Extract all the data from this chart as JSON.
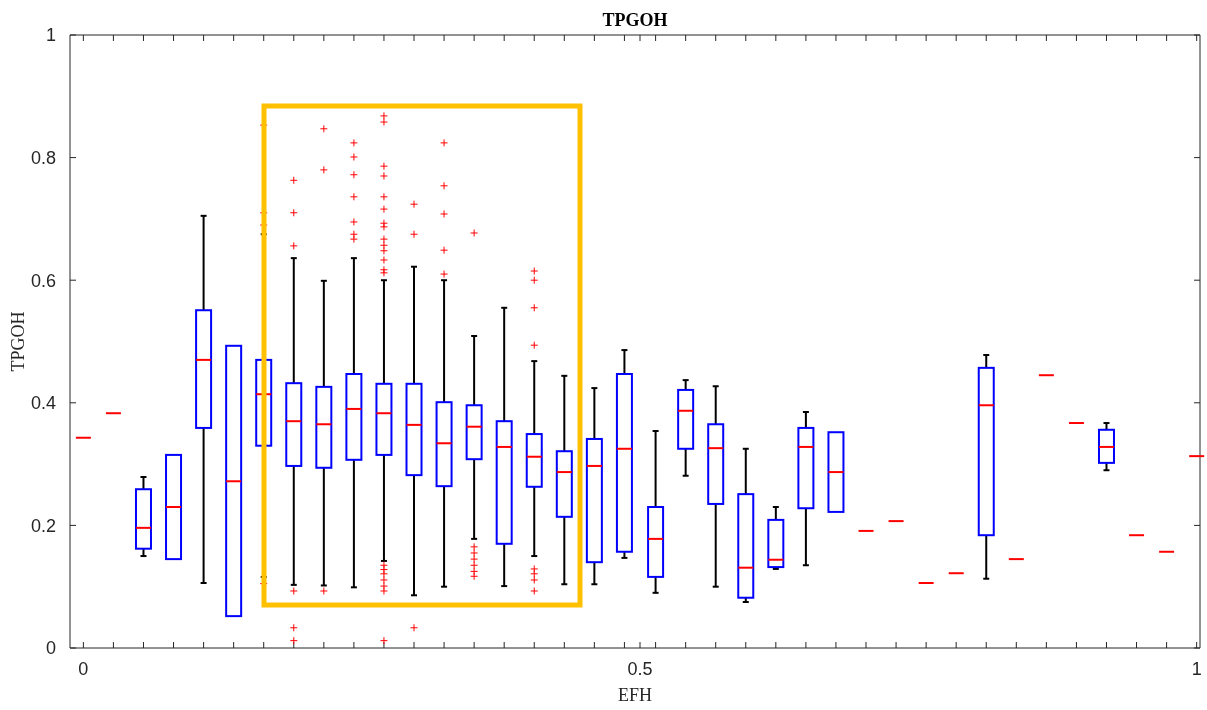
{
  "chart_data": {
    "type": "box",
    "title": "TPGOH",
    "xlabel": "EFH",
    "ylabel": "TPGOH",
    "colors": [
      "#ff0000",
      "#ff0000",
      "#0000ff",
      "#0000ff",
      "#0000ff",
      "#0000ff",
      "#0000ff",
      "#0000ff",
      "#0000ff",
      "#0000ff",
      "#0000ff",
      "#0000ff",
      "#0000ff",
      "#0000ff",
      "#0000ff",
      "#0000ff",
      "#0000ff",
      "#0000ff",
      "#0000ff",
      "#0000ff",
      "#0000ff",
      "#0000ff",
      "#0000ff",
      "#0000ff",
      "#0000ff",
      "#0000ff",
      "#ff0000",
      "#ff0000",
      "#ff0000",
      "#ff0000",
      "#0000ff",
      "#ff0000",
      "#ff0000",
      "#ff0000",
      "#0000ff",
      "#ff0000",
      "#ff0000",
      "#ff0000"
    ],
    "x": [
      0,
      0.027,
      0.054,
      0.081,
      0.108,
      0.135,
      0.162,
      0.189,
      0.216,
      0.243,
      0.27,
      0.297,
      0.324,
      0.351,
      0.378,
      0.405,
      0.432,
      0.459,
      0.486,
      0.514,
      0.541,
      0.568,
      0.595,
      0.622,
      0.649,
      0.676,
      0.703,
      0.73,
      0.757,
      0.784,
      0.811,
      0.838,
      0.865,
      0.892,
      0.919,
      0.946,
      0.973,
      1
    ],
    "boxes": [
      {
        "low": 0.343,
        "q1": 0.343,
        "median": 0.343,
        "q3": 0.343,
        "high": 0.343
      },
      {
        "low": 0.383,
        "q1": 0.383,
        "median": 0.383,
        "q3": 0.383,
        "high": 0.383
      },
      {
        "low": 0.15,
        "q1": 0.162,
        "median": 0.196,
        "q3": 0.259,
        "high": 0.279
      },
      {
        "low": 0.145,
        "q1": 0.145,
        "median": 0.23,
        "q3": 0.315,
        "high": 0.315
      },
      {
        "low": 0.106,
        "q1": 0.359,
        "median": 0.47,
        "q3": 0.551,
        "high": 0.705
      },
      {
        "low": 0.052,
        "q1": 0.052,
        "median": 0.272,
        "q3": 0.493,
        "high": 0.493
      },
      {
        "low": 0.116,
        "q1": 0.33,
        "median": 0.414,
        "q3": 0.47,
        "high": 0.675,
        "outliers": [
          0.853,
          0.71,
          0.69,
          0.105
        ]
      },
      {
        "low": 0.103,
        "q1": 0.297,
        "median": 0.37,
        "q3": 0.432,
        "high": 0.636,
        "outliers": [
          0.763,
          0.71,
          0.656,
          0.093,
          0.033,
          0.012
        ]
      },
      {
        "low": 0.102,
        "q1": 0.294,
        "median": 0.365,
        "q3": 0.426,
        "high": 0.599,
        "outliers": [
          0.847,
          0.78,
          0.093
        ]
      },
      {
        "low": 0.099,
        "q1": 0.307,
        "median": 0.39,
        "q3": 0.447,
        "high": 0.636,
        "outliers": [
          0.824,
          0.801,
          0.772,
          0.736,
          0.695,
          0.675,
          0.667
        ]
      },
      {
        "low": 0.142,
        "q1": 0.315,
        "median": 0.383,
        "q3": 0.431,
        "high": 0.6,
        "outliers": [
          0.868,
          0.858,
          0.786,
          0.77,
          0.736,
          0.716,
          0.693,
          0.687,
          0.667,
          0.657,
          0.648,
          0.633,
          0.617,
          0.612,
          0.135,
          0.128,
          0.121,
          0.111,
          0.101,
          0.093,
          0.012
        ]
      },
      {
        "low": 0.086,
        "q1": 0.282,
        "median": 0.364,
        "q3": 0.431,
        "high": 0.622,
        "outliers": [
          0.724,
          0.675,
          0.033
        ]
      },
      {
        "low": 0.1,
        "q1": 0.264,
        "median": 0.334,
        "q3": 0.401,
        "high": 0.6,
        "outliers": [
          0.824,
          0.754,
          0.708,
          0.649,
          0.61
        ]
      },
      {
        "low": 0.178,
        "q1": 0.308,
        "median": 0.361,
        "q3": 0.396,
        "high": 0.509,
        "outliers": [
          0.677,
          0.165,
          0.155,
          0.145,
          0.135,
          0.125,
          0.117
        ]
      },
      {
        "low": 0.101,
        "q1": 0.17,
        "median": 0.328,
        "q3": 0.37,
        "high": 0.555
      },
      {
        "low": 0.15,
        "q1": 0.263,
        "median": 0.312,
        "q3": 0.349,
        "high": 0.468,
        "outliers": [
          0.615,
          0.6,
          0.555,
          0.494,
          0.129,
          0.121,
          0.111,
          0.093
        ]
      },
      {
        "low": 0.104,
        "q1": 0.214,
        "median": 0.287,
        "q3": 0.321,
        "high": 0.444
      },
      {
        "low": 0.104,
        "q1": 0.14,
        "median": 0.297,
        "q3": 0.341,
        "high": 0.424
      },
      {
        "low": 0.147,
        "q1": 0.157,
        "median": 0.325,
        "q3": 0.447,
        "high": 0.486
      },
      {
        "low": 0.09,
        "q1": 0.116,
        "median": 0.178,
        "q3": 0.23,
        "high": 0.354
      },
      {
        "low": 0.281,
        "q1": 0.325,
        "median": 0.387,
        "q3": 0.421,
        "high": 0.437
      },
      {
        "low": 0.1,
        "q1": 0.235,
        "median": 0.326,
        "q3": 0.365,
        "high": 0.427
      },
      {
        "low": 0.075,
        "q1": 0.082,
        "median": 0.131,
        "q3": 0.251,
        "high": 0.325
      },
      {
        "low": 0.129,
        "q1": 0.132,
        "median": 0.144,
        "q3": 0.209,
        "high": 0.23
      },
      {
        "low": 0.135,
        "q1": 0.228,
        "median": 0.328,
        "q3": 0.359,
        "high": 0.385
      },
      {
        "low": 0.222,
        "q1": 0.222,
        "median": 0.287,
        "q3": 0.352,
        "high": 0.352
      },
      {
        "low": 0.191,
        "q1": 0.191,
        "median": 0.191,
        "q3": 0.191,
        "high": 0.191
      },
      {
        "low": 0.207,
        "q1": 0.207,
        "median": 0.207,
        "q3": 0.207,
        "high": 0.207
      },
      {
        "low": 0.106,
        "q1": 0.106,
        "median": 0.106,
        "q3": 0.106,
        "high": 0.106
      },
      {
        "low": 0.122,
        "q1": 0.122,
        "median": 0.122,
        "q3": 0.122,
        "high": 0.122
      },
      {
        "low": 0.113,
        "q1": 0.184,
        "median": 0.396,
        "q3": 0.457,
        "high": 0.478
      },
      {
        "low": 0.145,
        "q1": 0.145,
        "median": 0.145,
        "q3": 0.145,
        "high": 0.145
      },
      {
        "low": 0.445,
        "q1": 0.445,
        "median": 0.445,
        "q3": 0.445,
        "high": 0.445
      },
      {
        "low": 0.367,
        "q1": 0.367,
        "median": 0.367,
        "q3": 0.367,
        "high": 0.367
      },
      {
        "low": 0.29,
        "q1": 0.302,
        "median": 0.328,
        "q3": 0.356,
        "high": 0.367
      },
      {
        "low": 0.184,
        "q1": 0.184,
        "median": 0.184,
        "q3": 0.184,
        "high": 0.184
      },
      {
        "low": 0.157,
        "q1": 0.157,
        "median": 0.157,
        "q3": 0.157,
        "high": 0.157
      },
      {
        "low": 0.313,
        "q1": 0.313,
        "median": 0.313,
        "q3": 0.313,
        "high": 0.313
      }
    ],
    "xlim": [
      -0.012,
      1.003
    ],
    "ylim": [
      0,
      1
    ],
    "xticks": [
      0,
      {
        "value": 0.027,
        "label": null
      },
      {
        "value": 0.054,
        "label": null
      },
      {
        "value": 0.081,
        "label": null
      },
      {
        "value": 0.108,
        "label": null
      },
      {
        "value": 0.135,
        "label": null
      },
      {
        "value": 0.162,
        "label": null
      },
      {
        "value": 0.189,
        "label": null
      },
      {
        "value": 0.216,
        "label": null
      },
      {
        "value": 0.243,
        "label": null
      },
      {
        "value": 0.27,
        "label": null
      },
      {
        "value": 0.297,
        "label": null
      },
      {
        "value": 0.324,
        "label": null
      },
      {
        "value": 0.351,
        "label": null
      },
      {
        "value": 0.378,
        "label": null
      },
      {
        "value": 0.405,
        "label": null
      },
      {
        "value": 0.432,
        "label": null
      },
      {
        "value": 0.459,
        "label": null
      },
      {
        "value": 0.486,
        "label": null
      },
      0.5,
      {
        "value": 0.514,
        "label": null
      },
      {
        "value": 0.541,
        "label": null
      },
      {
        "value": 0.568,
        "label": null
      },
      {
        "value": 0.595,
        "label": null
      },
      {
        "value": 0.622,
        "label": null
      },
      {
        "value": 0.649,
        "label": null
      },
      {
        "value": 0.676,
        "label": null
      },
      {
        "value": 0.703,
        "label": null
      },
      {
        "value": 0.73,
        "label": null
      },
      {
        "value": 0.757,
        "label": null
      },
      {
        "value": 0.784,
        "label": null
      },
      {
        "value": 0.811,
        "label": null
      },
      {
        "value": 0.838,
        "label": null
      },
      {
        "value": 0.865,
        "label": null
      },
      {
        "value": 0.892,
        "label": null
      },
      {
        "value": 0.919,
        "label": null
      },
      {
        "value": 0.946,
        "label": null
      },
      {
        "value": 0.973,
        "label": null
      },
      1
    ],
    "yticks": [
      0,
      0.2,
      0.4,
      0.6,
      0.8,
      1
    ]
  }
}
